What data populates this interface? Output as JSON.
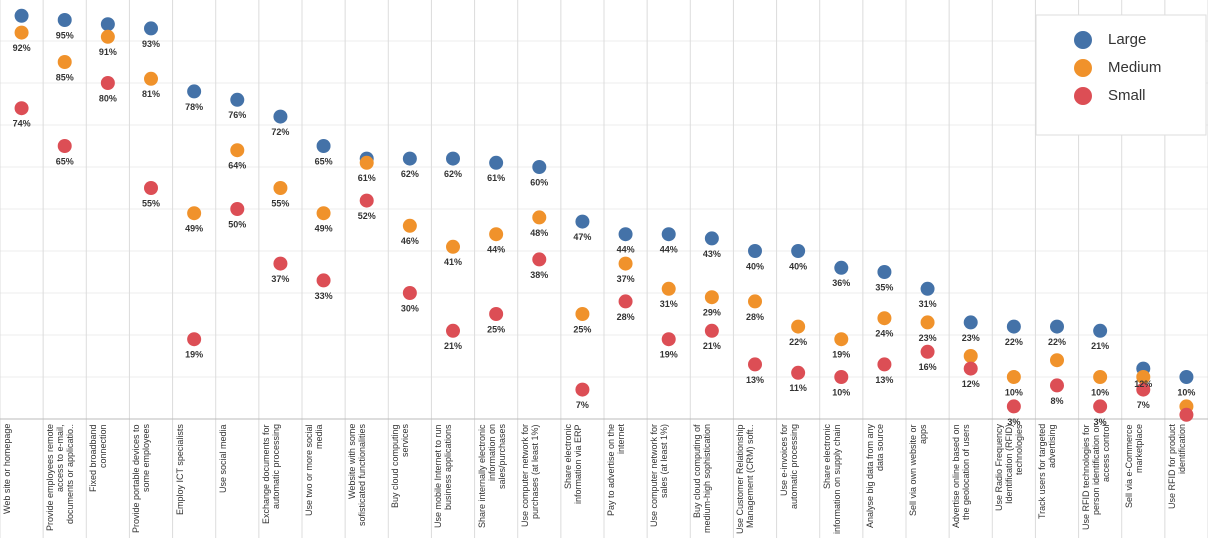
{
  "chart_data": {
    "type": "dot",
    "categories": [
      "Web site or homepage",
      "Provide employees remote access to e-mail, documents or applicatio..",
      "Fixed broadband connection",
      "Provide portable devices to some employees",
      "Employ ICT specialists",
      "Use social media",
      "Exchange documents for automatic processing",
      "Use two or more social media",
      "Website with some sofisticated functionalities",
      "Buy cloud computing services",
      "Use mobile Internet to run business applications",
      "Share internally electronic information on sales/purchases",
      "Use computer network for purchases (at least 1%)",
      "Share electronic information via ERP",
      "Pay to advertise on the internet",
      "Use computer network for sales (at least 1%)",
      "Buy cloud computing of medium-high sophistication",
      "Use Customer Relationship Management (CRM) soft..",
      "Use e-invoices for automatic processing",
      "Share electronic information on supply chain",
      "Analyse big data from any data source",
      "Sell via own website or apps",
      "Advertise online based on the geolocation of users",
      "Use Radio Frequency Identification (RFID) technologies",
      "Track users for targeted advertising",
      "Use RFID technologies for person identification or access control",
      "Sell via e-Commerce marketplace",
      "Use RFID for product identification"
    ],
    "series": [
      {
        "name": "Large",
        "color": "#4472a8",
        "values": [
          96,
          95,
          94,
          93,
          78,
          76,
          72,
          65,
          62,
          62,
          62,
          61,
          60,
          47,
          44,
          44,
          43,
          40,
          40,
          36,
          35,
          31,
          23,
          22,
          22,
          21,
          12,
          10
        ],
        "value_labels": [
          null,
          "95%",
          null,
          "93%",
          "78%",
          "76%",
          "72%",
          "65%",
          null,
          "62%",
          "62%",
          "61%",
          "60%",
          "47%",
          "44%",
          "44%",
          "43%",
          "40%",
          "40%",
          "36%",
          "35%",
          "31%",
          "23%",
          "22%",
          "22%",
          "21%",
          "12%",
          "10%"
        ]
      },
      {
        "name": "Medium",
        "color": "#f0922b",
        "values": [
          92,
          85,
          91,
          81,
          49,
          64,
          55,
          49,
          61,
          46,
          41,
          44,
          48,
          25,
          37,
          31,
          29,
          28,
          22,
          19,
          24,
          23,
          15,
          10,
          14,
          10,
          10,
          3
        ],
        "value_labels": [
          "92%",
          "85%",
          "91%",
          "81%",
          "49%",
          "64%",
          "55%",
          "49%",
          "61%",
          "46%",
          "41%",
          "44%",
          "48%",
          "25%",
          "37%",
          "31%",
          "29%",
          "28%",
          "22%",
          "19%",
          "24%",
          "23%",
          null,
          "10%",
          null,
          "10%",
          null,
          null
        ]
      },
      {
        "name": "Small",
        "color": "#dc4e55",
        "values": [
          74,
          65,
          80,
          55,
          19,
          50,
          37,
          33,
          52,
          30,
          21,
          25,
          38,
          7,
          28,
          19,
          21,
          13,
          11,
          10,
          13,
          16,
          12,
          3,
          8,
          3,
          7,
          1
        ],
        "value_labels": [
          "74%",
          "65%",
          "80%",
          "55%",
          "19%",
          "50%",
          "37%",
          "33%",
          "52%",
          "30%",
          "21%",
          "25%",
          "38%",
          "7%",
          "28%",
          "19%",
          "21%",
          "13%",
          "11%",
          "10%",
          "13%",
          "16%",
          "12%",
          "3%",
          "8%",
          "3%",
          "7%",
          null
        ]
      }
    ],
    "ylim": [
      0,
      100
    ],
    "yticks": [
      0,
      10,
      20,
      30,
      40,
      50,
      60,
      70,
      80,
      90,
      100
    ],
    "grid": true,
    "legend": "upper right"
  }
}
